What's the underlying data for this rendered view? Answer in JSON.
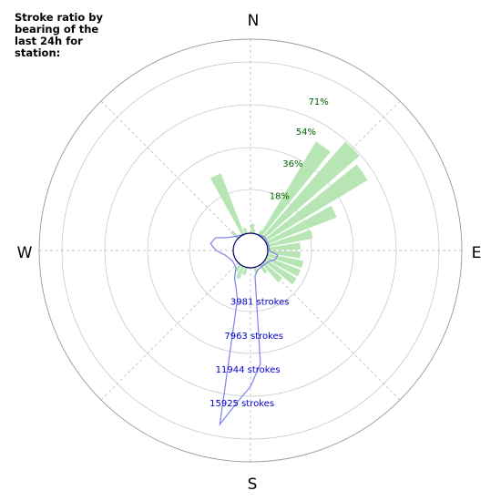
{
  "title": "Stroke ratio by bearing of the last 24h for station:",
  "chart_data": {
    "type": "polar",
    "title": "Stroke ratio by bearing of the last 24h for station:",
    "compass_labels": [
      "N",
      "E",
      "S",
      "W"
    ],
    "ratio_axis": {
      "ticks": [
        "18%",
        "36%",
        "54%",
        "71%"
      ],
      "values": [
        18,
        36,
        54,
        71
      ],
      "max": 89
    },
    "strokes_axis": {
      "ticks": [
        "3981 strokes",
        "7963 strokes",
        "11944 strokes",
        "15925 strokes"
      ],
      "values": [
        3981,
        7963,
        11944,
        15925
      ],
      "max": 19906
    },
    "ratio_series": {
      "name": "ratio",
      "color": "#b7e5b4",
      "sectors": [
        {
          "bearing": 5,
          "value": 5
        },
        {
          "bearing": 10,
          "value": 2
        },
        {
          "bearing": 30,
          "value": 3
        },
        {
          "bearing": 35,
          "value": 57
        },
        {
          "bearing": 45,
          "value": 66
        },
        {
          "bearing": 55,
          "value": 62
        },
        {
          "bearing": 65,
          "value": 39
        },
        {
          "bearing": 75,
          "value": 24
        },
        {
          "bearing": 85,
          "value": 17
        },
        {
          "bearing": 95,
          "value": 17
        },
        {
          "bearing": 105,
          "value": 19
        },
        {
          "bearing": 115,
          "value": 19
        },
        {
          "bearing": 125,
          "value": 19
        },
        {
          "bearing": 135,
          "value": 13
        },
        {
          "bearing": 145,
          "value": 5
        },
        {
          "bearing": 165,
          "value": 3
        },
        {
          "bearing": 195,
          "value": 4
        },
        {
          "bearing": 205,
          "value": 7
        },
        {
          "bearing": 215,
          "value": 4
        },
        {
          "bearing": 315,
          "value": 5
        },
        {
          "bearing": 335,
          "value": 34
        },
        {
          "bearing": 345,
          "value": 3
        }
      ]
    },
    "strokes_series": {
      "name": "strokes",
      "color": "#8080ee",
      "points": [
        {
          "bearing": 0,
          "value": 0
        },
        {
          "bearing": 20,
          "value": 0
        },
        {
          "bearing": 45,
          "value": 250
        },
        {
          "bearing": 70,
          "value": 200
        },
        {
          "bearing": 90,
          "value": 200
        },
        {
          "bearing": 100,
          "value": 1200
        },
        {
          "bearing": 110,
          "value": 1050
        },
        {
          "bearing": 120,
          "value": 500
        },
        {
          "bearing": 140,
          "value": 250
        },
        {
          "bearing": 160,
          "value": 400
        },
        {
          "bearing": 170,
          "value": 1000
        },
        {
          "bearing": 175,
          "value": 11200
        },
        {
          "bearing": 180,
          "value": 13800
        },
        {
          "bearing": 185,
          "value": 15700
        },
        {
          "bearing": 190,
          "value": 18500
        },
        {
          "bearing": 195,
          "value": 3900
        },
        {
          "bearing": 200,
          "value": 2800
        },
        {
          "bearing": 210,
          "value": 1700
        },
        {
          "bearing": 220,
          "value": 600
        },
        {
          "bearing": 240,
          "value": 400
        },
        {
          "bearing": 260,
          "value": 1000
        },
        {
          "bearing": 270,
          "value": 2000
        },
        {
          "bearing": 280,
          "value": 2700
        },
        {
          "bearing": 290,
          "value": 2300
        },
        {
          "bearing": 300,
          "value": 1000
        },
        {
          "bearing": 310,
          "value": 500
        },
        {
          "bearing": 320,
          "value": 200
        },
        {
          "bearing": 340,
          "value": 0
        },
        {
          "bearing": 360,
          "value": 0
        }
      ]
    },
    "grid": true
  }
}
